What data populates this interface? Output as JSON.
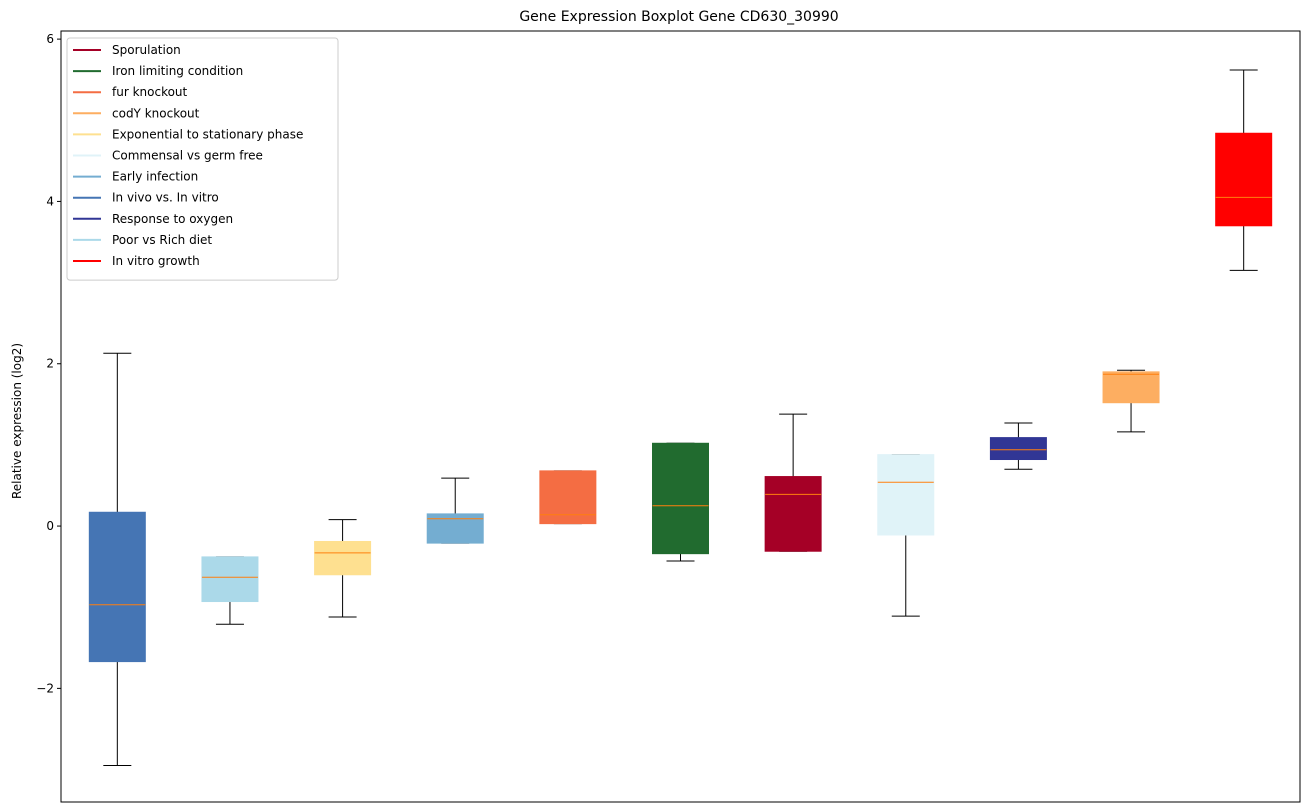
{
  "chart_data": {
    "type": "boxplot",
    "title": "Gene Expression Boxplot Gene CD630_30990",
    "xlabel": "",
    "ylabel": "Relative expression (log2)",
    "ylim": [
      -3.4,
      6.1
    ],
    "yticks": [
      -2,
      0,
      2,
      4,
      6
    ],
    "ytick_labels": [
      "−2",
      "0",
      "2",
      "4",
      "6"
    ],
    "grid": false,
    "legend_position": "top-left",
    "legend": [
      {
        "label": "Sporulation",
        "color": "#a50026"
      },
      {
        "label": "Iron limiting condition",
        "color": "#216b2f"
      },
      {
        "label": "fur knockout",
        "color": "#f46d43"
      },
      {
        "label": "codY knockout",
        "color": "#fdae61"
      },
      {
        "label": "Exponential to stationary phase",
        "color": "#fee090"
      },
      {
        "label": "Commensal vs germ free",
        "color": "#e0f3f8"
      },
      {
        "label": "Early infection",
        "color": "#74add1"
      },
      {
        "label": "In vivo vs. In vitro",
        "color": "#4575b4"
      },
      {
        "label": "Response to oxygen",
        "color": "#313695"
      },
      {
        "label": "Poor vs Rich diet",
        "color": "#abd9e9"
      },
      {
        "label": "In vitro growth",
        "color": "#ff0000"
      }
    ],
    "boxes": [
      {
        "condition": "In vivo vs. In vitro",
        "color": "#4575b4",
        "whisker_low": -2.95,
        "q1": -1.67,
        "median": -0.97,
        "q3": 0.17,
        "whisker_high": 2.13
      },
      {
        "condition": "Poor vs Rich diet",
        "color": "#abd9e9",
        "whisker_low": -1.21,
        "q1": -0.93,
        "median": -0.63,
        "q3": -0.38,
        "whisker_high": -0.38
      },
      {
        "condition": "Exponential to stationary phase",
        "color": "#fee090",
        "whisker_low": -1.12,
        "q1": -0.6,
        "median": -0.33,
        "q3": -0.19,
        "whisker_high": 0.08
      },
      {
        "condition": "Early infection",
        "color": "#74add1",
        "whisker_low": -0.21,
        "q1": -0.21,
        "median": 0.09,
        "q3": 0.15,
        "whisker_high": 0.59
      },
      {
        "condition": "fur knockout",
        "color": "#f46d43",
        "whisker_low": 0.03,
        "q1": 0.03,
        "median": 0.14,
        "q3": 0.68,
        "whisker_high": 0.68
      },
      {
        "condition": "Iron limiting condition",
        "color": "#216b2f",
        "whisker_low": -0.43,
        "q1": -0.34,
        "median": 0.25,
        "q3": 1.02,
        "whisker_high": 1.02
      },
      {
        "condition": "Sporulation",
        "color": "#a50026",
        "whisker_low": -0.31,
        "q1": -0.31,
        "median": 0.39,
        "q3": 0.61,
        "whisker_high": 1.38
      },
      {
        "condition": "Commensal vs germ free",
        "color": "#e0f3f8",
        "whisker_low": -1.11,
        "q1": -0.11,
        "median": 0.54,
        "q3": 0.88,
        "whisker_high": 0.88
      },
      {
        "condition": "Response to oxygen",
        "color": "#313695",
        "whisker_low": 0.7,
        "q1": 0.82,
        "median": 0.94,
        "q3": 1.09,
        "whisker_high": 1.27
      },
      {
        "condition": "codY knockout",
        "color": "#fdae61",
        "whisker_low": 1.16,
        "q1": 1.52,
        "median": 1.87,
        "q3": 1.9,
        "whisker_high": 1.92
      },
      {
        "condition": "In vitro growth",
        "color": "#ff0000",
        "whisker_low": 3.15,
        "q1": 3.7,
        "median": 4.05,
        "q3": 4.84,
        "whisker_high": 5.62
      }
    ],
    "median_color": "#ff7f0e"
  }
}
